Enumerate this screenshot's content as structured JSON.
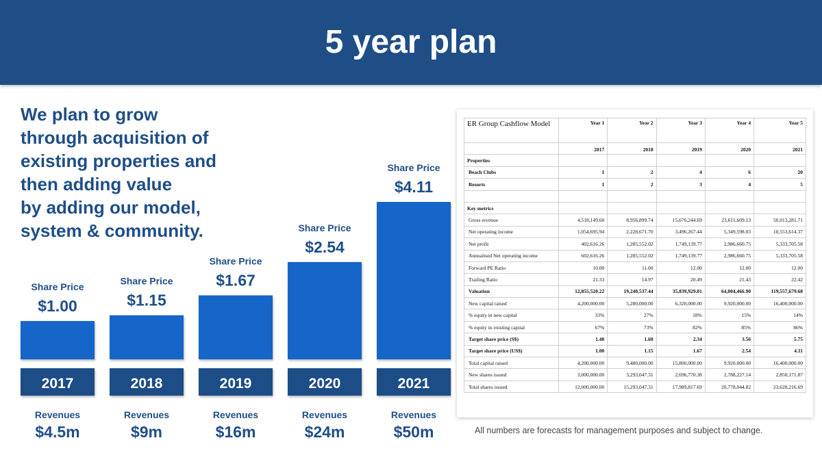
{
  "title": "5 year plan",
  "intro_lines": [
    "We plan to grow",
    "through acquisition of",
    "existing properties and",
    "then adding value",
    "by adding our model,",
    "system & community."
  ],
  "colors": {
    "header": "#1f4e87",
    "bar": "#1565c8",
    "year_box": "#1f4e87",
    "text": "#1f4e87"
  },
  "chart_data": {
    "type": "bar",
    "categories": [
      "2017",
      "2018",
      "2019",
      "2020",
      "2021"
    ],
    "values": [
      1.0,
      1.15,
      1.67,
      2.54,
      4.11
    ],
    "value_caption": "Share Price",
    "value_labels": [
      "$1.00",
      "$1.15",
      "$1.67",
      "$2.54",
      "$4.11"
    ],
    "revenue_caption": "Revenues",
    "revenue_labels": [
      "$4.5m",
      "$9m",
      "$16m",
      "$24m",
      "$50m"
    ],
    "ylim": [
      0,
      4.11
    ],
    "grid": false,
    "legend": "none"
  },
  "table": {
    "title": "ER Group Cashflow Model",
    "year_headers": [
      "Year 1",
      "Year 2",
      "Year 3",
      "Year 4",
      "Year 5"
    ],
    "years": [
      "2017",
      "2018",
      "2019",
      "2020",
      "2021"
    ],
    "sections": [
      {
        "heading": "Properties",
        "rows": [
          {
            "label": "Beach Clubs",
            "bold": true,
            "values": [
              "1",
              "2",
              "4",
              "6",
              "20"
            ]
          },
          {
            "label": "Resorts",
            "bold": true,
            "values": [
              "1",
              "2",
              "3",
              "4",
              "5"
            ]
          }
        ]
      },
      {
        "heading": "Key metrics",
        "rows": [
          {
            "label": "Gross revenue",
            "bold": false,
            "values": [
              "4,518,149.60",
              "8,956,899.74",
              "15,676,244.69",
              "23,611,609.13",
              "50,013,281.71"
            ]
          },
          {
            "label": "Net operating income",
            "bold": false,
            "values": [
              "1,054,695.94",
              "2,228,671.70",
              "3,496,267.44",
              "5,349,598.03",
              "10,553,614.37"
            ]
          },
          {
            "label": "Net profit",
            "bold": false,
            "values": [
              "402,616.26",
              "1,285,552.02",
              "1,749,139.77",
              "2,986,660.75",
              "5,333,705.58"
            ]
          },
          {
            "label": "Annualised Net operating income",
            "bold": false,
            "values": [
              "602,616.26",
              "1,285,552.02",
              "1,749,139.77",
              "2,986,660.75",
              "5,333,705.58"
            ]
          },
          {
            "label": "Forward PE Ratio",
            "bold": false,
            "values": [
              "10.00",
              "11.00",
              "12.00",
              "12.00",
              "12.00"
            ]
          },
          {
            "label": "Trailing Ratio",
            "bold": false,
            "values": [
              "21.33",
              "14.97",
              "20.49",
              "21.43",
              "22.42"
            ]
          },
          {
            "label": "Valuation",
            "bold": true,
            "values": [
              "12,855,520.22",
              "19,240,537.44",
              "35,839,929.01",
              "64,004,466.90",
              "119,557,679.68"
            ]
          },
          {
            "label": "New capital raised",
            "bold": false,
            "values": [
              "4,200,000.00",
              "5,280,000.00",
              "6,320,000.00",
              "9,920,000.00",
              "16,400,000.00"
            ]
          },
          {
            "label": "% equity in new capital",
            "bold": false,
            "values": [
              "33%",
              "27%",
              "18%",
              "15%",
              "14%"
            ]
          },
          {
            "label": "% equity in existing capital",
            "bold": false,
            "values": [
              "67%",
              "73%",
              "82%",
              "85%",
              "86%"
            ]
          },
          {
            "label": "Target share price (S$)",
            "bold": true,
            "values": [
              "1.40",
              "1.60",
              "2.34",
              "3.56",
              "5.75"
            ]
          },
          {
            "label": "Target share price (US$)",
            "bold": true,
            "values": [
              "1.00",
              "1.15",
              "1.67",
              "2.54",
              "4.11"
            ]
          },
          {
            "label": "Total capital raised",
            "bold": false,
            "values": [
              "4,200,000.00",
              "9,480,000.00",
              "15,800,000.00",
              "9,920,000.00",
              "16,400,000.00"
            ]
          },
          {
            "label": "New shares issued",
            "bold": false,
            "values": [
              "3,000,000.00",
              "3,293,047.31",
              "2,696,770.38",
              "2,788,227.14",
              "2,850,171.87"
            ]
          },
          {
            "label": "Total shares issued",
            "bold": false,
            "values": [
              "12,000,000.00",
              "15,293,047.31",
              "17,989,817.69",
              "20,778,044.82",
              "23,628,216.69"
            ]
          }
        ]
      }
    ]
  },
  "footnote": "All numbers are forecasts for management purposes and subject to change."
}
